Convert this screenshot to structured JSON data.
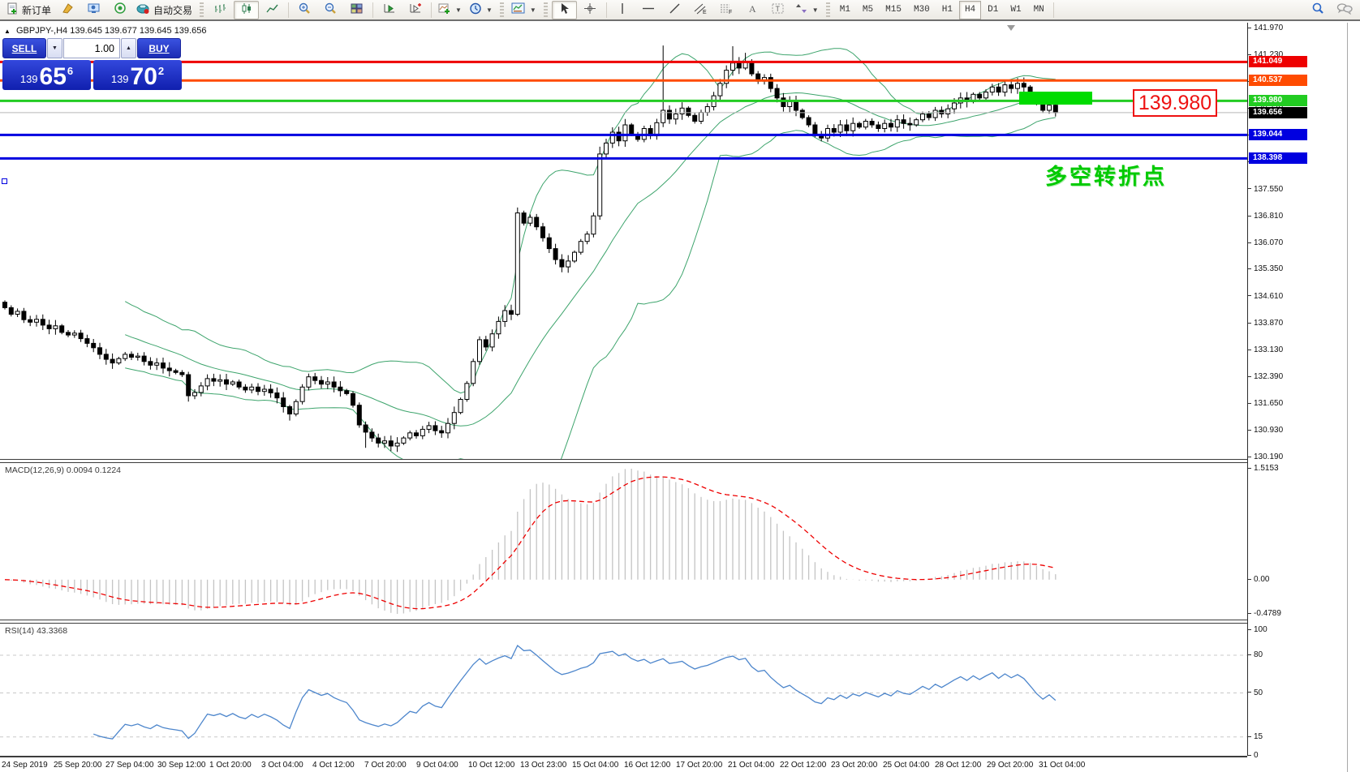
{
  "toolbar": {
    "new_order_label": "新订单",
    "auto_trading_label": "自动交易",
    "timeframes": [
      "M1",
      "M5",
      "M15",
      "M30",
      "H1",
      "H4",
      "D1",
      "W1",
      "MN"
    ],
    "active_timeframe": "H4"
  },
  "header": {
    "marker": "▲",
    "symbol_period": "GBPJPY-,H4",
    "ohlc_text": "139.645 139.677 139.645 139.656"
  },
  "trade": {
    "sell_label": "SELL",
    "buy_label": "BUY",
    "volume": "1.00",
    "sell_price": {
      "prefix": "139",
      "big": "65",
      "sup": "6"
    },
    "buy_price": {
      "prefix": "139",
      "big": "70",
      "sup": "2"
    }
  },
  "panes": {
    "macd_label": "MACD(12,26,9) 0.0094 0.1224",
    "rsi_label": "RSI(14) 43.3368"
  },
  "annotations": {
    "price_box": "139.980",
    "cjk_text": "多空转折点",
    "highlight_color": "#00dc00"
  },
  "chart_data": {
    "type": "candlestick",
    "symbol": "GBPJPY-",
    "period": "H4",
    "ohlc": {
      "open": "139.645",
      "high": "139.677",
      "low": "139.645",
      "close": "139.656"
    },
    "bid_price": 139.656,
    "first_open": 134.45,
    "closes": [
      134.3,
      134.12,
      134.2,
      133.97,
      133.9,
      133.98,
      133.82,
      133.72,
      133.8,
      133.62,
      133.55,
      133.6,
      133.45,
      133.32,
      133.2,
      133.02,
      132.88,
      132.78,
      132.9,
      133.02,
      132.94,
      132.97,
      132.82,
      132.72,
      132.78,
      132.64,
      132.57,
      132.52,
      132.46,
      131.88,
      131.97,
      132.15,
      132.35,
      132.28,
      132.32,
      132.2,
      132.26,
      132.12,
      132.04,
      132.12,
      132.0,
      132.06,
      131.96,
      131.82,
      131.58,
      131.38,
      131.72,
      132.12,
      132.4,
      132.3,
      132.2,
      132.26,
      132.12,
      132.02,
      131.94,
      131.62,
      131.08,
      130.88,
      130.72,
      130.58,
      130.64,
      130.5,
      130.58,
      130.72,
      130.86,
      130.78,
      130.96,
      131.06,
      130.92,
      130.86,
      131.12,
      131.42,
      131.78,
      132.22,
      132.82,
      133.42,
      133.22,
      133.58,
      133.92,
      134.22,
      134.12,
      136.9,
      136.62,
      136.78,
      136.52,
      136.22,
      135.92,
      135.62,
      135.42,
      135.58,
      135.82,
      136.12,
      136.32,
      136.82,
      138.52,
      138.82,
      139.12,
      138.88,
      139.32,
      139.06,
      138.92,
      139.22,
      139.02,
      139.38,
      139.72,
      139.48,
      139.62,
      139.78,
      139.58,
      139.42,
      139.66,
      139.82,
      140.12,
      140.46,
      140.82,
      141.02,
      140.88,
      141.06,
      140.72,
      140.52,
      140.62,
      140.32,
      140.06,
      139.82,
      139.96,
      139.72,
      139.52,
      139.32,
      139.06,
      138.96,
      139.22,
      139.12,
      139.32,
      139.16,
      139.36,
      139.26,
      139.42,
      139.32,
      139.22,
      139.36,
      139.26,
      139.46,
      139.36,
      139.32,
      139.46,
      139.62,
      139.52,
      139.72,
      139.62,
      139.76,
      139.92,
      140.06,
      139.96,
      140.16,
      140.06,
      140.22,
      140.36,
      140.22,
      140.42,
      140.32,
      140.46,
      140.36,
      140.16,
      139.92,
      139.72,
      139.86,
      139.656
    ],
    "wick_overrides": {
      "29": {
        "low": 131.72
      },
      "45": {
        "low": 131.2
      },
      "57": {
        "low": 130.45
      },
      "61": {
        "low": 130.36
      },
      "81": {
        "high": 137.05
      },
      "94": {
        "high": 138.72
      },
      "104": {
        "high": 141.5
      },
      "115": {
        "high": 141.48
      },
      "117": {
        "high": 141.3
      }
    },
    "bollinger": {
      "period": 20,
      "deviation": 2,
      "color": "#3da46c"
    },
    "hlines": [
      {
        "price": 141.049,
        "color": "#ee0000",
        "width": 3,
        "label": "141.049",
        "fg": "#ffffff"
      },
      {
        "price": 140.537,
        "color": "#ff4b00",
        "width": 3,
        "label": "140.537",
        "fg": "#ffffff"
      },
      {
        "price": 139.98,
        "color": "#22cc22",
        "width": 3,
        "label": "139.980",
        "fg": "#ffffff"
      },
      {
        "price": 139.044,
        "color": "#0000e0",
        "width": 3,
        "label": "139.044",
        "fg": "#ffffff"
      },
      {
        "price": 138.398,
        "color": "#0000e0",
        "width": 3,
        "label": "138.398",
        "fg": "#ffffff"
      }
    ],
    "bid_tag": {
      "price": 139.656,
      "label": "139.656",
      "bg": "#000000",
      "fg": "#ffffff"
    },
    "y_ticks": [
      141.97,
      141.23,
      140.49,
      139.77,
      139.03,
      138.29,
      137.55,
      136.81,
      136.07,
      135.35,
      134.61,
      133.87,
      133.13,
      132.39,
      131.65,
      130.93,
      130.19
    ],
    "macd": {
      "fast": 12,
      "slow": 26,
      "signal": 9,
      "value": "0.0094",
      "signal_value": "0.1224",
      "axis": [
        "1.5153",
        "0.00",
        "-0.4789"
      ],
      "hist_color": "#c4c4c4",
      "signal_color": "#ee0000"
    },
    "rsi": {
      "period": 14,
      "value": "43.3368",
      "levels": [
        80,
        50,
        15
      ],
      "axis": [
        "100",
        "80",
        "50",
        "15",
        "0"
      ],
      "color": "#4d86cc"
    },
    "time_labels": [
      "24 Sep 2019",
      "25 Sep 20:00",
      "27 Sep 04:00",
      "30 Sep 12:00",
      "1 Oct 20:00",
      "3 Oct 04:00",
      "4 Oct 12:00",
      "7 Oct 20:00",
      "9 Oct 04:00",
      "10 Oct 12:00",
      "13 Oct 23:00",
      "15 Oct 04:00",
      "16 Oct 12:00",
      "17 Oct 20:00",
      "21 Oct 04:00",
      "22 Oct 12:00",
      "23 Oct 20:00",
      "25 Oct 04:00",
      "28 Oct 12:00",
      "29 Oct 20:00",
      "31 Oct 04:00"
    ]
  }
}
